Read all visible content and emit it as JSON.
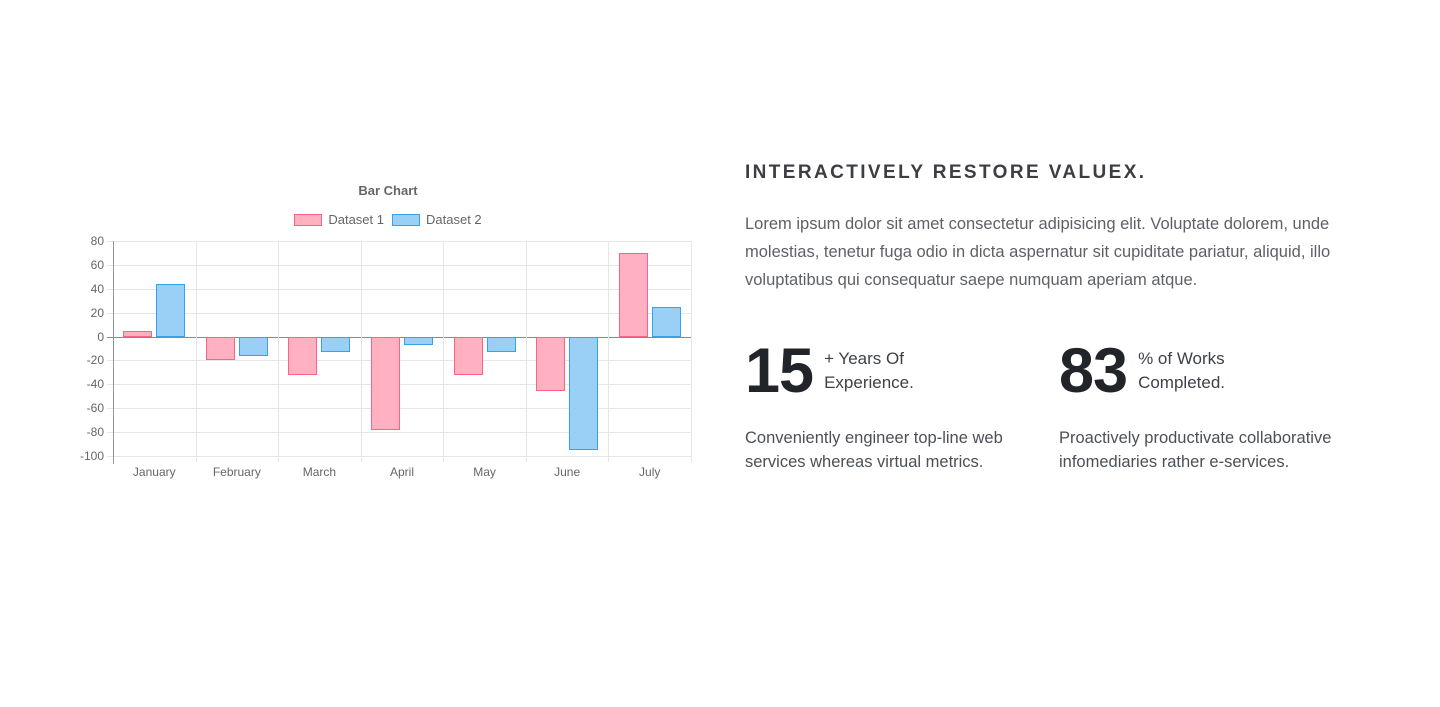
{
  "chart_data": {
    "type": "bar",
    "title": "Bar Chart",
    "categories": [
      "January",
      "February",
      "March",
      "April",
      "May",
      "June",
      "July"
    ],
    "series": [
      {
        "name": "Dataset 1",
        "fill": "#ffb1c1",
        "border": "#ff6384",
        "values": [
          5,
          -20,
          -32,
          -78,
          -32,
          -46,
          70
        ]
      },
      {
        "name": "Dataset 2",
        "fill": "#9ad0f5",
        "border": "#36a2eb",
        "values": [
          44,
          -16,
          -13,
          -7,
          -13,
          -95,
          25
        ]
      }
    ],
    "ylim": [
      -100,
      80
    ],
    "ytick_step": 20,
    "grid": true,
    "legend_position": "top",
    "colors": {
      "gridline": "#e6e6e6",
      "zero_line": "#8a8a8a",
      "axis_line": "#949494",
      "tick_text": "#666666"
    }
  },
  "content": {
    "heading": "INTERACTIVELY RESTORE VALUEX.",
    "paragraph": "Lorem ipsum dolor sit amet consectetur adipisicing elit. Voluptate dolorem, unde molestias, tenetur fuga odio in dicta aspernatur sit cupiditate pariatur, aliquid, illo voluptatibus qui consequatur saepe numquam aperiam atque.",
    "stats": [
      {
        "value": "15",
        "label": "+ Years Of\nExperience.",
        "description": "Conveniently engineer top-line web services whereas virtual metrics."
      },
      {
        "value": "83",
        "label": "% of Works\nCompleted.",
        "description": "Proactively productivate collaborative infomediaries rather e-services."
      }
    ]
  }
}
